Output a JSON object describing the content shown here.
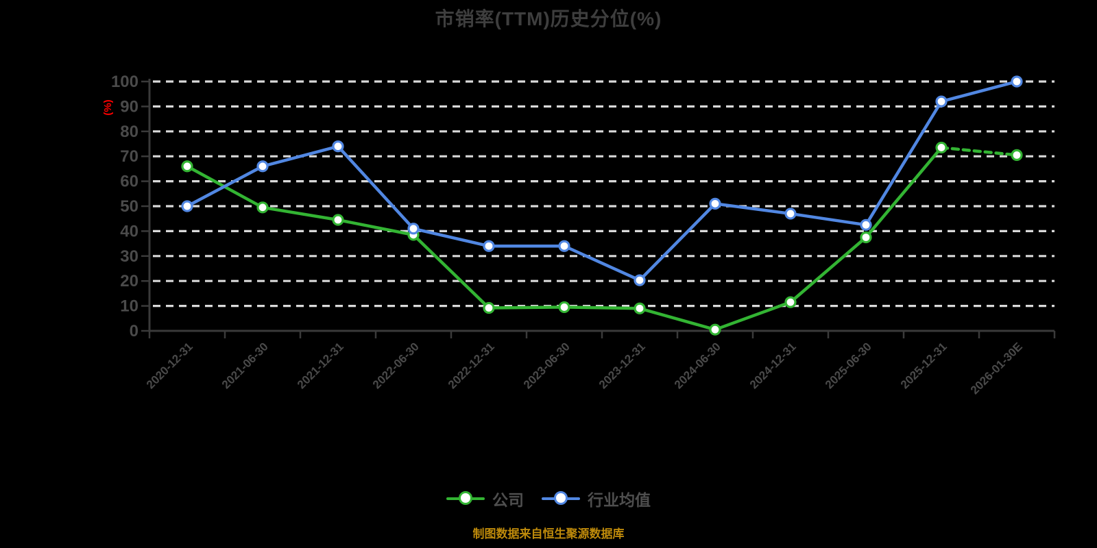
{
  "page": {
    "background": "#000000"
  },
  "chart_data": {
    "type": "line",
    "title": "市销率(TTM)历史分位(%)",
    "ylabel": "(%)",
    "ylabel_color": "#FF0000",
    "ylim": [
      0,
      100
    ],
    "ytick_step": 10,
    "grid": true,
    "legend_position": "bottom",
    "categories": [
      "2020-12-31",
      "2021-06-30",
      "2021-12-31",
      "2022-06-30",
      "2022-12-31",
      "2023-06-30",
      "2023-12-31",
      "2024-06-30",
      "2024-12-31",
      "2025-06-30",
      "2025-12-31",
      "2026-01-30E"
    ],
    "series": [
      {
        "id": "company",
        "name": "公司",
        "color": "#33B433",
        "marker": "circle-white-fill",
        "last_segment_style": "dashed",
        "values": [
          66,
          49.5,
          44.5,
          38.5,
          9.2,
          9.5,
          9,
          0.5,
          11.5,
          37.5,
          73.5,
          70.5
        ]
      },
      {
        "id": "industry-average",
        "name": "行业均值",
        "color": "#5187E2",
        "marker": "circle-white-fill",
        "last_segment_style": "solid",
        "values": [
          50,
          66,
          74,
          41,
          34,
          34,
          20.3,
          51,
          47,
          42.5,
          92,
          100
        ]
      }
    ],
    "footer_note": "制图数据来自恒生聚源数据库",
    "footer_color": "#BE8A0B",
    "axis_color": "#3A3A3A",
    "gridline_color": "#D9D9D9",
    "tick_label_color": "#4A4A4A",
    "title_color": "#3E3E3E",
    "legend_label_color": "#4E4E4E"
  }
}
